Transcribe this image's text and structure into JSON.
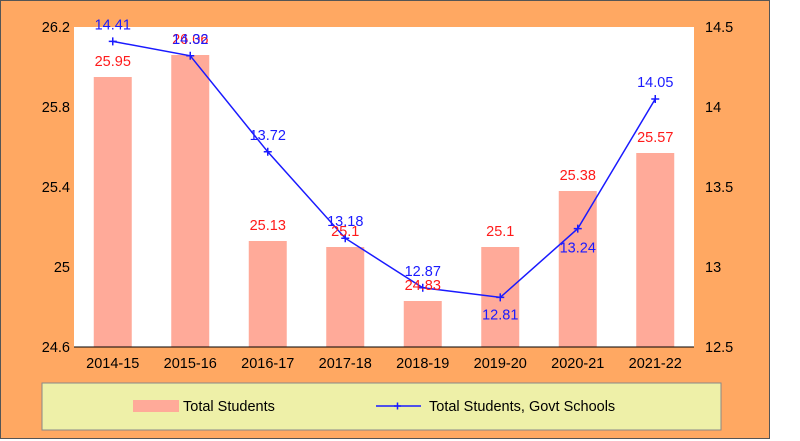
{
  "chart_data": {
    "type": "bar+line",
    "categories": [
      "2014-15",
      "2015-16",
      "2016-17",
      "2017-18",
      "2018-19",
      "2019-20",
      "2020-21",
      "2021-22"
    ],
    "series": [
      {
        "name": "Total Students",
        "type": "bar",
        "axis": "left",
        "color": "#ffaa99",
        "label_color": "#ff1a1a",
        "values": [
          25.95,
          26.06,
          25.13,
          25.1,
          24.83,
          25.1,
          25.38,
          25.57
        ],
        "labels": [
          "25.95",
          "26.06",
          "25.13",
          "25.1",
          "24.83",
          "25.1",
          "25.38",
          "25.57"
        ]
      },
      {
        "name": "Total Students, Govt Schools",
        "type": "line",
        "axis": "right",
        "color": "#1a1aff",
        "marker": "plus",
        "label_color": "#1a1aff",
        "values": [
          14.41,
          14.32,
          13.72,
          13.18,
          12.87,
          12.81,
          13.24,
          14.05
        ],
        "labels": [
          "14.41",
          "14.32",
          "13.72",
          "13.18",
          "12.87",
          "12.81",
          "13.24",
          "14.05"
        ]
      }
    ],
    "y_left": {
      "min": 24.6,
      "max": 26.2,
      "ticks": [
        "24.6",
        "25",
        "25.4",
        "25.8",
        "26.2"
      ]
    },
    "y_right": {
      "min": 12.5,
      "max": 14.5,
      "ticks": [
        "12.5",
        "13",
        "13.5",
        "14",
        "14.5"
      ]
    },
    "grid": false,
    "legend": "bottom"
  },
  "colors": {
    "outer_background": "#ffa862",
    "plot_background": "#ffffff",
    "legend_background": "#eef0a8"
  }
}
